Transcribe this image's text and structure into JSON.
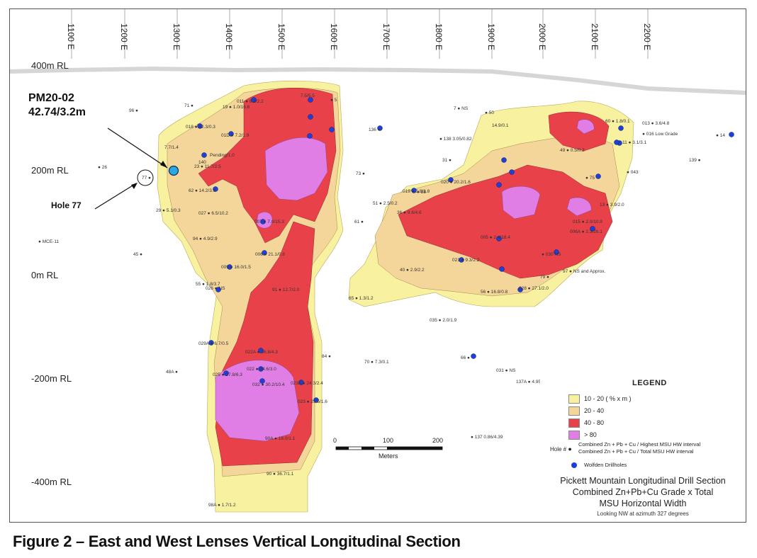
{
  "eastings": [
    "1100 E",
    "1200 E",
    "1300 E",
    "1400 E",
    "1500 E",
    "1600 E",
    "1700 E",
    "1800 E",
    "1900 E",
    "2000 E",
    "2100 E",
    "2200 E"
  ],
  "rl_labels": [
    "400m RL",
    "200m RL",
    "0m RL",
    "-200m RL",
    "-400m RL"
  ],
  "callout": {
    "hole": "PM20-02",
    "value": "42.74/3.2m"
  },
  "hole77_label": "Hole 77",
  "legend": {
    "title": "LEGEND",
    "classes": [
      {
        "label": "10 - 20  ( % x m )",
        "color": "#f7f1a0"
      },
      {
        "label": "20 - 40",
        "color": "#f4d69a"
      },
      {
        "label": "40 - 80",
        "color": "#e8414a"
      },
      {
        "label": "> 80",
        "color": "#e07ee6"
      }
    ],
    "hole_key": "Hole #",
    "hole_line1": "Combined Zn + Pb + Cu / Highest MSU HW interval",
    "hole_line2": "Combined Zn + Pb + Cu / Total MSU HW interval",
    "drillholes_label": "Wolfden Drillholes"
  },
  "scale": {
    "ticks": [
      "0",
      "100",
      "200"
    ],
    "unit": "Meters"
  },
  "title": {
    "line1": "Pickett Mountain Longitudinal Drill Section",
    "line2": "Combined Zn+Pb+Cu Grade x Total",
    "line3": "MSU Horizontal Width",
    "line4": "Looking NW at azimuth 327 degrees"
  },
  "caption": "Figure 2 – East and West Lenses Vertical Longitudinal Section",
  "holes": [
    {
      "id": "PM20-02 intercept",
      "text": "7.7/1.4"
    },
    {
      "id": "011",
      "text": "011 ● 8.2/2.2"
    },
    {
      "id": "012",
      "text": "7.5/5.5"
    },
    {
      "id": "018",
      "text": "018 ● 22.3/0.3"
    },
    {
      "id": "01D",
      "text": "01D ● 7.2/1.9"
    },
    {
      "id": "140",
      "text": "140"
    },
    {
      "id": "Pending",
      "text": "Pending/1.0"
    },
    {
      "id": "23",
      "text": "23 ● 11.7/2.5"
    },
    {
      "id": "62",
      "text": "62 ● 14.2/3.0"
    },
    {
      "id": "027",
      "text": "027 ● 6.5/10.2"
    },
    {
      "id": "29",
      "text": "29 ● 5.1/0.3"
    },
    {
      "id": "94",
      "text": "94 ● 4.9/2.9"
    },
    {
      "id": "007",
      "text": "007 ● 7.0/15.3"
    },
    {
      "id": "006",
      "text": "006 ● 21.1/0.8"
    },
    {
      "id": "009",
      "text": "009 ● 16.0/1.5"
    },
    {
      "id": "026",
      "text": "026 ● NS"
    },
    {
      "id": "55",
      "text": "55 ● 1.8/3.7"
    },
    {
      "id": "91",
      "text": "91 ● 12.7/2.0"
    },
    {
      "id": "029A",
      "text": "029A ● 6.7/0.5"
    },
    {
      "id": "022A",
      "text": "022A ● 36.8/4.3"
    },
    {
      "id": "025",
      "text": "025 ● 27.8/6.3"
    },
    {
      "id": "022",
      "text": "022 ● 34.6/3.0"
    },
    {
      "id": "032",
      "text": "032 ● 30.2/10.4"
    },
    {
      "id": "023A",
      "text": "023A ● 24.3/2.4"
    },
    {
      "id": "023",
      "text": "023 ● 25.5/1.6"
    },
    {
      "id": "90A",
      "text": "90A ● 18.0/1.1"
    },
    {
      "id": "90",
      "text": "90 ● 36.7/1.1"
    },
    {
      "id": "98A",
      "text": "98A ● 1.7/1.2"
    },
    {
      "id": "84",
      "text": "84 ●"
    },
    {
      "id": "48A",
      "text": "48A ●"
    },
    {
      "id": "45",
      "text": "45 ●"
    },
    {
      "id": "MCE-11",
      "text": "● MCE-11"
    },
    {
      "id": "26",
      "text": "● 26"
    },
    {
      "id": "96",
      "text": "96 ●"
    },
    {
      "id": "71",
      "text": "71 ●"
    },
    {
      "id": "19",
      "text": "19 ● 1.0/16.6"
    },
    {
      "id": "5",
      "text": "● 5"
    },
    {
      "id": "7",
      "text": "7 ● NS"
    },
    {
      "id": "136",
      "text": "136 ●"
    },
    {
      "id": "138",
      "text": "● 138 3.05/0.82"
    },
    {
      "id": "31",
      "text": "31 ●"
    },
    {
      "id": "73",
      "text": "73 ●"
    },
    {
      "id": "019",
      "text": "019 ● 0.8/1.8"
    },
    {
      "id": "88",
      "text": "● 88"
    },
    {
      "id": "51",
      "text": "51 ● 2.5/0.2"
    },
    {
      "id": "61",
      "text": "61 ●"
    },
    {
      "id": "36",
      "text": "36 ● 9.6/4.6"
    },
    {
      "id": "020",
      "text": "020 ● 20.2/1.6"
    },
    {
      "id": "005",
      "text": "005 ● 2.4/18.4"
    },
    {
      "id": "021",
      "text": "021 ● 9.3/2.2"
    },
    {
      "id": "40",
      "text": "40 ● 2.9/2.2"
    },
    {
      "id": "65",
      "text": "65 ● 1.3/1.2"
    },
    {
      "id": "56",
      "text": "56 ● 16.8/0.8"
    },
    {
      "id": "028",
      "text": "028 ● 27.1/2.0"
    },
    {
      "id": "030",
      "text": "● 030 NS"
    },
    {
      "id": "035",
      "text": "035 ● 2.0/1.9"
    },
    {
      "id": "66",
      "text": "66 ●"
    },
    {
      "id": "031",
      "text": "031 ● NS"
    },
    {
      "id": "137A",
      "text": "137A ● 4.95/5.11"
    },
    {
      "id": "137",
      "text": "● 137 0.86/4.39"
    },
    {
      "id": "97",
      "text": "97 ● NS and Approx."
    },
    {
      "id": "79",
      "text": "79 ●"
    },
    {
      "id": "50",
      "text": "● 50"
    },
    {
      "id": "14.9",
      "text": "14.9/0.1"
    },
    {
      "id": "49",
      "text": "49 ● 0.5/0.2"
    },
    {
      "id": "60",
      "text": "60 ● 1.8/0.1"
    },
    {
      "id": "013",
      "text": "013 ● 3.6/4.8"
    },
    {
      "id": "11",
      "text": "11 ● 3.1/3.1"
    },
    {
      "id": "016",
      "text": "● 016 Low Grade"
    },
    {
      "id": "14",
      "text": "● 14"
    },
    {
      "id": "139",
      "text": "139 ●"
    },
    {
      "id": "043",
      "text": "● 043"
    },
    {
      "id": "75",
      "text": "● 75"
    },
    {
      "id": "13",
      "text": "13 ● 3.9/2.0"
    },
    {
      "id": "015",
      "text": "015 ● 2.0/10.9"
    },
    {
      "id": "006A",
      "text": "006A ● 2.3/26.1"
    },
    {
      "id": "70",
      "text": "70 ● 7.3/0.1"
    }
  ]
}
